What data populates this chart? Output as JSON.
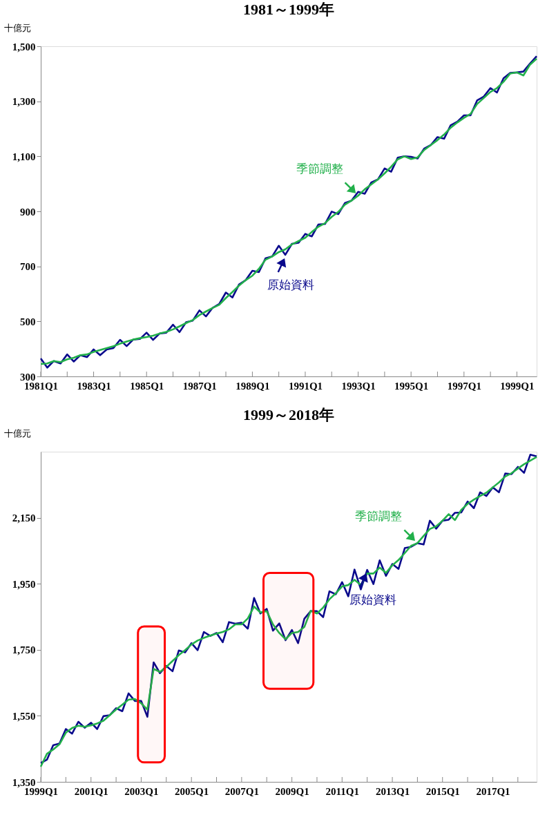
{
  "chart_data": [
    {
      "type": "line",
      "title": "1981～1999年",
      "ylabel": "十億元",
      "x": [
        "1981-01",
        "1981-04",
        "1981-07",
        "1981-10",
        "1982-01",
        "1982-04",
        "1982-07",
        "1982-10",
        "1983-01",
        "1983-04",
        "1983-07",
        "1983-10",
        "1984-01",
        "1984-04",
        "1984-07",
        "1984-10",
        "1985-01",
        "1985-04",
        "1985-07",
        "1985-10",
        "1986-01",
        "1986-04",
        "1986-07",
        "1986-10",
        "1987-01",
        "1987-04",
        "1987-07",
        "1987-10",
        "1988-01",
        "1988-04",
        "1988-07",
        "1988-10",
        "1989-01",
        "1989-04",
        "1989-07",
        "1989-10",
        "1990-01",
        "1990-04",
        "1990-07",
        "1990-10",
        "1991-01",
        "1991-04",
        "1991-07",
        "1991-10",
        "1992-01",
        "1992-04",
        "1992-07",
        "1992-10",
        "1993-01",
        "1993-04",
        "1993-07",
        "1993-10",
        "1994-01",
        "1994-04",
        "1994-07",
        "1994-10",
        "1995-01",
        "1995-04",
        "1995-07",
        "1995-10",
        "1996-01",
        "1996-04",
        "1996-07",
        "1996-10",
        "1997-01",
        "1997-04",
        "1997-07",
        "1997-10",
        "1998-01",
        "1998-04",
        "1998-07",
        "1998-10",
        "1999-01",
        "1999-04",
        "1999-07",
        "1999-10"
      ],
      "xlim": [
        "1981-01",
        "1999-10"
      ],
      "xticks": [
        {
          "value": "1981-01",
          "label": "1981Q1"
        },
        {
          "value": "1982-01",
          "label": null
        },
        {
          "value": "1983-01",
          "label": "1983Q1"
        },
        {
          "value": "1984-01",
          "label": null
        },
        {
          "value": "1985-01",
          "label": "1985Q1"
        },
        {
          "value": "1986-01",
          "label": null
        },
        {
          "value": "1987-01",
          "label": "1987Q1"
        },
        {
          "value": "1988-01",
          "label": null
        },
        {
          "value": "1989-01",
          "label": "1989Q1"
        },
        {
          "value": "1990-01",
          "label": null
        },
        {
          "value": "1991-01",
          "label": "1991Q1"
        },
        {
          "value": "1992-01",
          "label": null
        },
        {
          "value": "1993-01",
          "label": "1993Q1"
        },
        {
          "value": "1994-01",
          "label": null
        },
        {
          "value": "1995-01",
          "label": "1995Q1"
        },
        {
          "value": "1996-01",
          "label": null
        },
        {
          "value": "1997-01",
          "label": "1997Q1"
        },
        {
          "value": "1998-01",
          "label": null
        },
        {
          "value": "1999-01",
          "label": "1999Q1"
        }
      ],
      "ylim": [
        300,
        1500
      ],
      "yticks": [
        {
          "value": 300,
          "label": "300"
        },
        {
          "value": 500,
          "label": "500"
        },
        {
          "value": 700,
          "label": "700"
        },
        {
          "value": 900,
          "label": "900"
        },
        {
          "value": 1100,
          "label": "1,100"
        },
        {
          "value": 1300,
          "label": "1,300"
        },
        {
          "value": 1500,
          "label": "1,500"
        }
      ],
      "series": [
        {
          "name": "原始資料",
          "color": "#0a0a8c",
          "values": [
            365,
            332,
            356,
            347,
            380,
            354,
            377,
            370,
            398,
            377,
            398,
            403,
            433,
            410,
            434,
            436,
            459,
            433,
            456,
            459,
            488,
            461,
            497,
            503,
            540,
            518,
            549,
            563,
            605,
            587,
            634,
            650,
            684,
            679,
            729,
            736,
            775,
            742,
            782,
            786,
            818,
            809,
            852,
            854,
            899,
            890,
            930,
            939,
            971,
            964,
            1005,
            1016,
            1056,
            1044,
            1095,
            1100,
            1098,
            1092,
            1128,
            1141,
            1170,
            1164,
            1213,
            1226,
            1249,
            1249,
            1303,
            1317,
            1348,
            1332,
            1384,
            1403,
            1405,
            1408,
            1437,
            1464
          ]
        },
        {
          "name": "季節調整",
          "color": "#22b04b",
          "values": [
            345,
            347,
            356,
            352,
            362,
            368,
            377,
            380,
            389,
            396,
            403,
            410,
            419,
            427,
            434,
            439,
            443,
            448,
            456,
            462,
            471,
            482,
            494,
            505,
            523,
            536,
            549,
            560,
            585,
            607,
            630,
            650,
            666,
            691,
            724,
            736,
            752,
            762,
            780,
            792,
            804,
            825,
            844,
            857,
            880,
            898,
            924,
            939,
            957,
            980,
            998,
            1016,
            1038,
            1062,
            1089,
            1100,
            1090,
            1096,
            1123,
            1141,
            1159,
            1179,
            1204,
            1223,
            1240,
            1254,
            1290,
            1312,
            1334,
            1348,
            1371,
            1401,
            1405,
            1394,
            1433,
            1455
          ]
        }
      ]
    },
    {
      "type": "line",
      "title": "1999～2018年",
      "ylabel": "十億元",
      "x": [
        "1999-01",
        "1999-04",
        "1999-07",
        "1999-10",
        "2000-01",
        "2000-04",
        "2000-07",
        "2000-10",
        "2001-01",
        "2001-04",
        "2001-07",
        "2001-10",
        "2002-01",
        "2002-04",
        "2002-07",
        "2002-10",
        "2003-01",
        "2003-04",
        "2003-07",
        "2003-10",
        "2004-01",
        "2004-04",
        "2004-07",
        "2004-10",
        "2005-01",
        "2005-04",
        "2005-07",
        "2005-10",
        "2006-01",
        "2006-04",
        "2006-07",
        "2006-10",
        "2007-01",
        "2007-04",
        "2007-07",
        "2007-10",
        "2008-01",
        "2008-04",
        "2008-07",
        "2008-10",
        "2009-01",
        "2009-04",
        "2009-07",
        "2009-10",
        "2010-01",
        "2010-04",
        "2010-07",
        "2010-10",
        "2011-01",
        "2011-04",
        "2011-07",
        "2011-10",
        "2012-01",
        "2012-04",
        "2012-07",
        "2012-10",
        "2013-01",
        "2013-04",
        "2013-07",
        "2013-10",
        "2014-01",
        "2014-04",
        "2014-07",
        "2014-10",
        "2015-01",
        "2015-04",
        "2015-07",
        "2015-10",
        "2016-01",
        "2016-04",
        "2016-07",
        "2016-10",
        "2017-01",
        "2017-04",
        "2017-07",
        "2017-10",
        "2018-01",
        "2018-04",
        "2018-07",
        "2018-10"
      ],
      "xlim": [
        "1999-01",
        "2018-10"
      ],
      "xticks": [
        {
          "value": "1999-01",
          "label": "1999Q1"
        },
        {
          "value": "2000-01",
          "label": null
        },
        {
          "value": "2001-01",
          "label": "2001Q1"
        },
        {
          "value": "2002-01",
          "label": null
        },
        {
          "value": "2003-01",
          "label": "2003Q1"
        },
        {
          "value": "2004-01",
          "label": null
        },
        {
          "value": "2005-01",
          "label": "2005Q1"
        },
        {
          "value": "2006-01",
          "label": null
        },
        {
          "value": "2007-01",
          "label": "2007Q1"
        },
        {
          "value": "2008-01",
          "label": null
        },
        {
          "value": "2009-01",
          "label": "2009Q1"
        },
        {
          "value": "2010-01",
          "label": null
        },
        {
          "value": "2011-01",
          "label": "2011Q1"
        },
        {
          "value": "2012-01",
          "label": null
        },
        {
          "value": "2013-01",
          "label": "2013Q1"
        },
        {
          "value": "2014-01",
          "label": null
        },
        {
          "value": "2015-01",
          "label": "2015Q1"
        },
        {
          "value": "2016-01",
          "label": null
        },
        {
          "value": "2017-01",
          "label": "2017Q1"
        },
        {
          "value": "2018-01",
          "label": null
        }
      ],
      "ylim": [
        1350,
        2350
      ],
      "yticks": [
        {
          "value": 1350,
          "label": "1,350"
        },
        {
          "value": 1550,
          "label": "1,550"
        },
        {
          "value": 1750,
          "label": "1,750"
        },
        {
          "value": 1950,
          "label": "1,950"
        },
        {
          "value": 2150,
          "label": "2,150"
        }
      ],
      "series": [
        {
          "name": "原始資料",
          "color": "#0a0a8c",
          "values": [
            1407,
            1417,
            1461,
            1466,
            1510,
            1496,
            1532,
            1514,
            1529,
            1510,
            1549,
            1552,
            1573,
            1564,
            1618,
            1595,
            1595,
            1547,
            1712,
            1679,
            1701,
            1685,
            1748,
            1742,
            1770,
            1749,
            1804,
            1792,
            1801,
            1773,
            1834,
            1829,
            1832,
            1814,
            1907,
            1860,
            1874,
            1808,
            1830,
            1779,
            1810,
            1770,
            1844,
            1867,
            1867,
            1849,
            1927,
            1918,
            1955,
            1912,
            1993,
            1933,
            1992,
            1949,
            2021,
            1974,
            2010,
            1995,
            2058,
            2062,
            2073,
            2069,
            2141,
            2117,
            2141,
            2144,
            2165,
            2166,
            2199,
            2179,
            2227,
            2216,
            2242,
            2227,
            2284,
            2282,
            2304,
            2286,
            2341,
            2336
          ]
        },
        {
          "name": "季節調整",
          "color": "#22b04b",
          "values": [
            1396,
            1435,
            1448,
            1464,
            1499,
            1513,
            1520,
            1517,
            1521,
            1527,
            1535,
            1552,
            1569,
            1584,
            1599,
            1601,
            1588,
            1569,
            1692,
            1683,
            1698,
            1716,
            1734,
            1749,
            1766,
            1778,
            1786,
            1793,
            1799,
            1804,
            1812,
            1827,
            1827,
            1845,
            1881,
            1863,
            1867,
            1827,
            1801,
            1782,
            1801,
            1804,
            1819,
            1868,
            1860,
            1878,
            1903,
            1921,
            1942,
            1946,
            1962,
            1946,
            1981,
            1981,
            1999,
            1983,
            2006,
            2022,
            2043,
            2065,
            2073,
            2095,
            2116,
            2124,
            2141,
            2161,
            2143,
            2174,
            2192,
            2205,
            2216,
            2226,
            2242,
            2257,
            2275,
            2285,
            2299,
            2312,
            2323,
            2334
          ]
        }
      ],
      "bands": [
        {
          "axis": "x",
          "from": "2002-11-15",
          "to": "2003-12-10",
          "color": "#ff0000"
        },
        {
          "axis": "x",
          "from": "2007-11-15",
          "to": "2009-11-10",
          "color": "#ff0000"
        }
      ]
    }
  ]
}
